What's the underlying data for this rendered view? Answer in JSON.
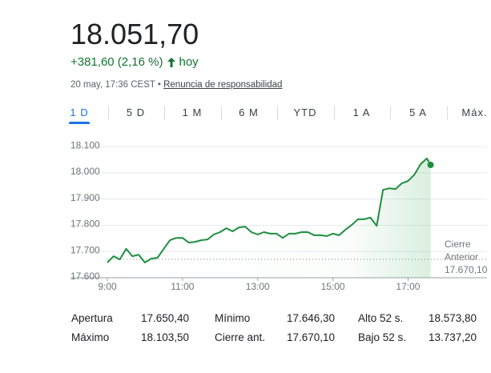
{
  "header": {
    "price": "18.051,70",
    "change": "+381,60 (2,16 %)",
    "change_period": "hoy",
    "timestamp": "20 may, 17:36 CEST",
    "disclaimer": "Renuncia de responsabilidad"
  },
  "tabs": [
    "1 D",
    "5 D",
    "1 M",
    "6 M",
    "YTD",
    "1 A",
    "5 A",
    "Máx."
  ],
  "active_tab": 0,
  "chart_data": {
    "type": "line",
    "x": [
      9.0,
      9.1667,
      9.3333,
      9.5,
      9.6667,
      9.8333,
      10.0,
      10.1667,
      10.3333,
      10.5,
      10.6667,
      10.8333,
      11.0,
      11.1667,
      11.3333,
      11.5,
      11.6667,
      11.8333,
      12.0,
      12.1667,
      12.3333,
      12.5,
      12.6667,
      12.8333,
      13.0,
      13.1667,
      13.3333,
      13.5,
      13.6667,
      13.8333,
      14.0,
      14.1667,
      14.3333,
      14.5,
      14.6667,
      14.8333,
      15.0,
      15.1667,
      15.3333,
      15.5,
      15.6667,
      15.8333,
      16.0,
      16.1667,
      16.3333,
      16.5,
      16.6667,
      16.8333,
      17.0,
      17.1667,
      17.3333,
      17.5,
      17.6
    ],
    "series": [
      {
        "color": "#1e8e3e",
        "values": [
          17658,
          17682,
          17670,
          17710,
          17682,
          17688,
          17658,
          17673,
          17676,
          17710,
          17743,
          17752,
          17752,
          17734,
          17737,
          17743,
          17746,
          17765,
          17774,
          17789,
          17777,
          17792,
          17795,
          17774,
          17765,
          17774,
          17768,
          17768,
          17752,
          17768,
          17768,
          17774,
          17774,
          17762,
          17762,
          17759,
          17768,
          17762,
          17783,
          17801,
          17823,
          17823,
          17829,
          17798,
          17935,
          17941,
          17938,
          17960,
          17969,
          17993,
          18033,
          18055,
          18030
        ]
      }
    ],
    "xlim": [
      9,
      19.1
    ],
    "ylim": [
      17600,
      18140
    ],
    "xticks": [
      {
        "value": 9,
        "label": "9:00"
      },
      {
        "value": 11,
        "label": "11:00"
      },
      {
        "value": 13,
        "label": "13:00"
      },
      {
        "value": 15,
        "label": "15:00"
      },
      {
        "value": 17,
        "label": "17:00"
      }
    ],
    "yticks": [
      {
        "value": 17600,
        "label": "17.600"
      },
      {
        "value": 17700,
        "label": "17.700"
      },
      {
        "value": 17800,
        "label": "17.800"
      },
      {
        "value": 17900,
        "label": "17.900"
      },
      {
        "value": 18000,
        "label": "18.000"
      },
      {
        "value": 18100,
        "label": "18.100"
      }
    ],
    "grid": true,
    "reference_line": {
      "label": "Cierre Anterior",
      "value": 17670.1,
      "value_label": "17.670,10"
    }
  },
  "stats": {
    "rows": [
      [
        "Apertura",
        "17.650,40",
        "Mínimo",
        "17.646,30",
        "Alto 52 s.",
        "18.573,80"
      ],
      [
        "Máximo",
        "18.103,50",
        "Cierre ant.",
        "17.670,10",
        "Bajo 52 s.",
        "13.737,20"
      ]
    ]
  }
}
